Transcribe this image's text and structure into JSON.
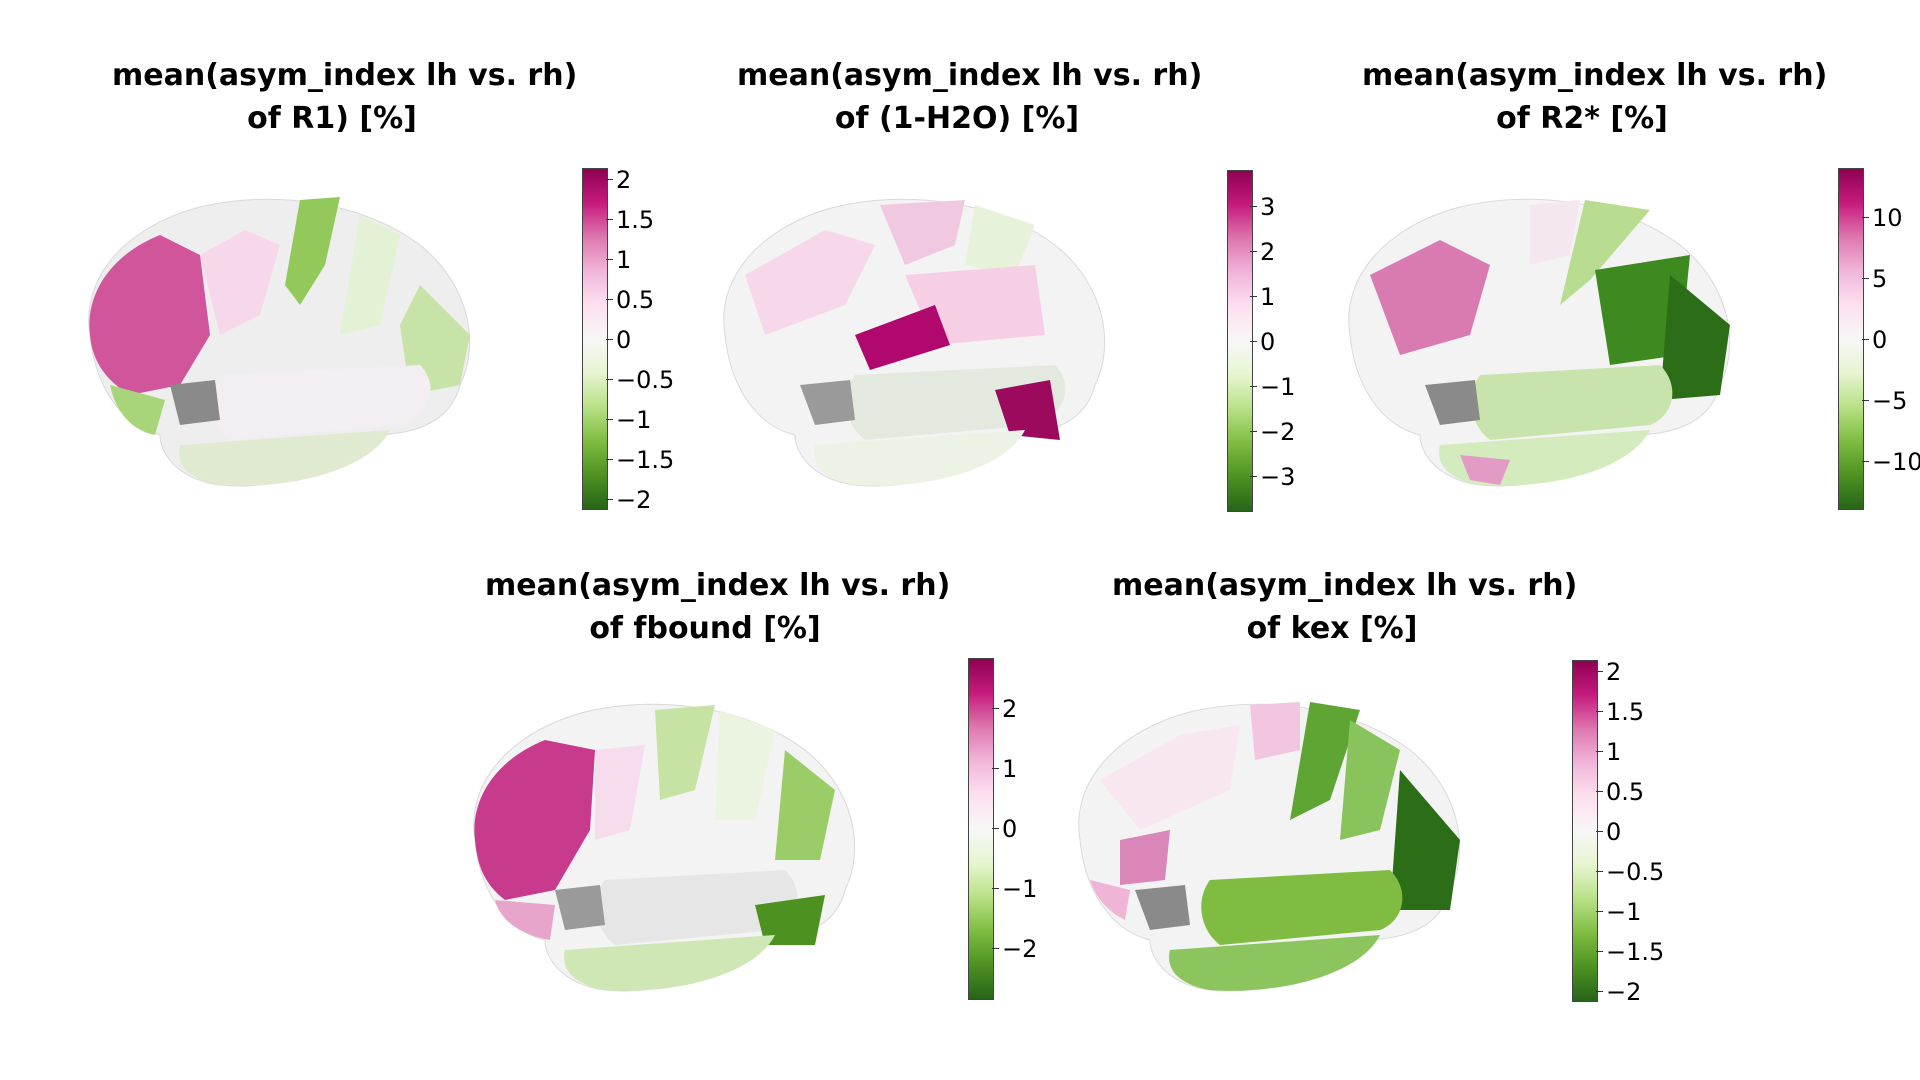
{
  "panels": [
    {
      "id": "r1",
      "title_line1": "mean(asym_index lh vs. rh)",
      "title_line2": "of R1) [%]",
      "colorbar": {
        "min": -2.2,
        "max": 2.2,
        "ticks": [
          "2",
          "1.5",
          "1",
          "0.5",
          "0",
          "−0.5",
          "−1",
          "−1.5",
          "−2"
        ],
        "tick_values": [
          2,
          1.5,
          1,
          0.5,
          0,
          -0.5,
          -1,
          -1.5,
          -2
        ]
      }
    },
    {
      "id": "h2o",
      "title_line1": "mean(asym_index lh vs. rh)",
      "title_line2": "of (1-H2O) [%]",
      "colorbar": {
        "min": -3.8,
        "max": 3.8,
        "ticks": [
          "3",
          "2",
          "1",
          "0",
          "−1",
          "−2",
          "−3"
        ],
        "tick_values": [
          3,
          2,
          1,
          0,
          -1,
          -2,
          -3
        ]
      }
    },
    {
      "id": "r2star",
      "title_line1": "mean(asym_index lh vs. rh)",
      "title_line2": "of R2* [%]",
      "colorbar": {
        "min": -14,
        "max": 14,
        "ticks": [
          "10",
          "5",
          "0",
          "−5",
          "−10"
        ],
        "tick_values": [
          10,
          5,
          0,
          -5,
          -10
        ]
      }
    },
    {
      "id": "fbound",
      "title_line1": "mean(asym_index lh vs. rh)",
      "title_line2": "of fbound [%]",
      "colorbar": {
        "min": -2.8,
        "max": 2.8,
        "ticks": [
          "2",
          "1",
          "0",
          "−1",
          "−2"
        ],
        "tick_values": [
          2,
          1,
          0,
          -1,
          -2
        ]
      }
    },
    {
      "id": "kex",
      "title_line1": "mean(asym_index lh vs. rh)",
      "title_line2": "of kex [%]",
      "colorbar": {
        "min": -2.2,
        "max": 2.2,
        "ticks": [
          "2",
          "1.5",
          "1",
          "0.5",
          "0",
          "−0.5",
          "−1",
          "−1.5",
          "−2"
        ],
        "tick_values": [
          2,
          1.5,
          1,
          0.5,
          0,
          -0.5,
          -1,
          -1.5,
          -2
        ]
      }
    }
  ],
  "colormap": [
    "#276419",
    "#4d9221",
    "#7fbc41",
    "#b8e186",
    "#e6f5d0",
    "#f7f7f7",
    "#fde0ef",
    "#f1b6da",
    "#de77ae",
    "#c51b7d",
    "#8e0152"
  ]
}
